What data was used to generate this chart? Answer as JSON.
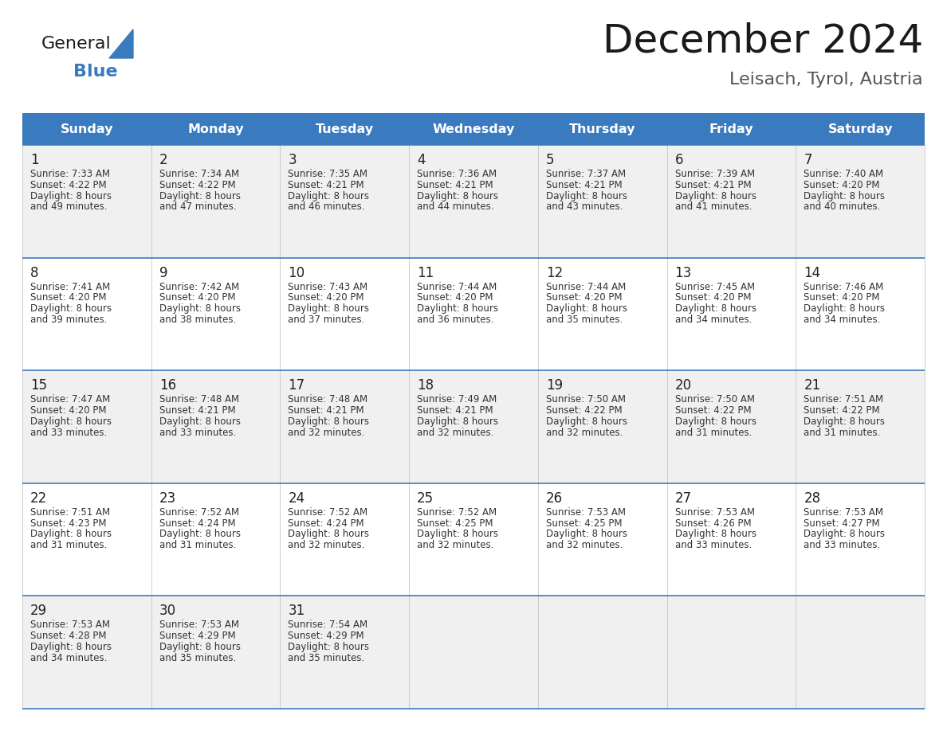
{
  "title": "December 2024",
  "subtitle": "Leisach, Tyrol, Austria",
  "days_of_week": [
    "Sunday",
    "Monday",
    "Tuesday",
    "Wednesday",
    "Thursday",
    "Friday",
    "Saturday"
  ],
  "header_bg": "#3a7bbf",
  "header_text_color": "#ffffff",
  "row_bg_odd": "#f0f0f0",
  "row_bg_even": "#ffffff",
  "divider_color": "#3a7bbf",
  "text_color": "#333333",
  "day_number_color": "#222222",
  "calendar": [
    [
      {
        "day": 1,
        "sunrise": "7:33 AM",
        "sunset": "4:22 PM",
        "daylight_line1": "8 hours",
        "daylight_line2": "and 49 minutes."
      },
      {
        "day": 2,
        "sunrise": "7:34 AM",
        "sunset": "4:22 PM",
        "daylight_line1": "8 hours",
        "daylight_line2": "and 47 minutes."
      },
      {
        "day": 3,
        "sunrise": "7:35 AM",
        "sunset": "4:21 PM",
        "daylight_line1": "8 hours",
        "daylight_line2": "and 46 minutes."
      },
      {
        "day": 4,
        "sunrise": "7:36 AM",
        "sunset": "4:21 PM",
        "daylight_line1": "8 hours",
        "daylight_line2": "and 44 minutes."
      },
      {
        "day": 5,
        "sunrise": "7:37 AM",
        "sunset": "4:21 PM",
        "daylight_line1": "8 hours",
        "daylight_line2": "and 43 minutes."
      },
      {
        "day": 6,
        "sunrise": "7:39 AM",
        "sunset": "4:21 PM",
        "daylight_line1": "8 hours",
        "daylight_line2": "and 41 minutes."
      },
      {
        "day": 7,
        "sunrise": "7:40 AM",
        "sunset": "4:20 PM",
        "daylight_line1": "8 hours",
        "daylight_line2": "and 40 minutes."
      }
    ],
    [
      {
        "day": 8,
        "sunrise": "7:41 AM",
        "sunset": "4:20 PM",
        "daylight_line1": "8 hours",
        "daylight_line2": "and 39 minutes."
      },
      {
        "day": 9,
        "sunrise": "7:42 AM",
        "sunset": "4:20 PM",
        "daylight_line1": "8 hours",
        "daylight_line2": "and 38 minutes."
      },
      {
        "day": 10,
        "sunrise": "7:43 AM",
        "sunset": "4:20 PM",
        "daylight_line1": "8 hours",
        "daylight_line2": "and 37 minutes."
      },
      {
        "day": 11,
        "sunrise": "7:44 AM",
        "sunset": "4:20 PM",
        "daylight_line1": "8 hours",
        "daylight_line2": "and 36 minutes."
      },
      {
        "day": 12,
        "sunrise": "7:44 AM",
        "sunset": "4:20 PM",
        "daylight_line1": "8 hours",
        "daylight_line2": "and 35 minutes."
      },
      {
        "day": 13,
        "sunrise": "7:45 AM",
        "sunset": "4:20 PM",
        "daylight_line1": "8 hours",
        "daylight_line2": "and 34 minutes."
      },
      {
        "day": 14,
        "sunrise": "7:46 AM",
        "sunset": "4:20 PM",
        "daylight_line1": "8 hours",
        "daylight_line2": "and 34 minutes."
      }
    ],
    [
      {
        "day": 15,
        "sunrise": "7:47 AM",
        "sunset": "4:20 PM",
        "daylight_line1": "8 hours",
        "daylight_line2": "and 33 minutes."
      },
      {
        "day": 16,
        "sunrise": "7:48 AM",
        "sunset": "4:21 PM",
        "daylight_line1": "8 hours",
        "daylight_line2": "and 33 minutes."
      },
      {
        "day": 17,
        "sunrise": "7:48 AM",
        "sunset": "4:21 PM",
        "daylight_line1": "8 hours",
        "daylight_line2": "and 32 minutes."
      },
      {
        "day": 18,
        "sunrise": "7:49 AM",
        "sunset": "4:21 PM",
        "daylight_line1": "8 hours",
        "daylight_line2": "and 32 minutes."
      },
      {
        "day": 19,
        "sunrise": "7:50 AM",
        "sunset": "4:22 PM",
        "daylight_line1": "8 hours",
        "daylight_line2": "and 32 minutes."
      },
      {
        "day": 20,
        "sunrise": "7:50 AM",
        "sunset": "4:22 PM",
        "daylight_line1": "8 hours",
        "daylight_line2": "and 31 minutes."
      },
      {
        "day": 21,
        "sunrise": "7:51 AM",
        "sunset": "4:22 PM",
        "daylight_line1": "8 hours",
        "daylight_line2": "and 31 minutes."
      }
    ],
    [
      {
        "day": 22,
        "sunrise": "7:51 AM",
        "sunset": "4:23 PM",
        "daylight_line1": "8 hours",
        "daylight_line2": "and 31 minutes."
      },
      {
        "day": 23,
        "sunrise": "7:52 AM",
        "sunset": "4:24 PM",
        "daylight_line1": "8 hours",
        "daylight_line2": "and 31 minutes."
      },
      {
        "day": 24,
        "sunrise": "7:52 AM",
        "sunset": "4:24 PM",
        "daylight_line1": "8 hours",
        "daylight_line2": "and 32 minutes."
      },
      {
        "day": 25,
        "sunrise": "7:52 AM",
        "sunset": "4:25 PM",
        "daylight_line1": "8 hours",
        "daylight_line2": "and 32 minutes."
      },
      {
        "day": 26,
        "sunrise": "7:53 AM",
        "sunset": "4:25 PM",
        "daylight_line1": "8 hours",
        "daylight_line2": "and 32 minutes."
      },
      {
        "day": 27,
        "sunrise": "7:53 AM",
        "sunset": "4:26 PM",
        "daylight_line1": "8 hours",
        "daylight_line2": "and 33 minutes."
      },
      {
        "day": 28,
        "sunrise": "7:53 AM",
        "sunset": "4:27 PM",
        "daylight_line1": "8 hours",
        "daylight_line2": "and 33 minutes."
      }
    ],
    [
      {
        "day": 29,
        "sunrise": "7:53 AM",
        "sunset": "4:28 PM",
        "daylight_line1": "8 hours",
        "daylight_line2": "and 34 minutes."
      },
      {
        "day": 30,
        "sunrise": "7:53 AM",
        "sunset": "4:29 PM",
        "daylight_line1": "8 hours",
        "daylight_line2": "and 35 minutes."
      },
      {
        "day": 31,
        "sunrise": "7:54 AM",
        "sunset": "4:29 PM",
        "daylight_line1": "8 hours",
        "daylight_line2": "and 35 minutes."
      },
      null,
      null,
      null,
      null
    ]
  ]
}
